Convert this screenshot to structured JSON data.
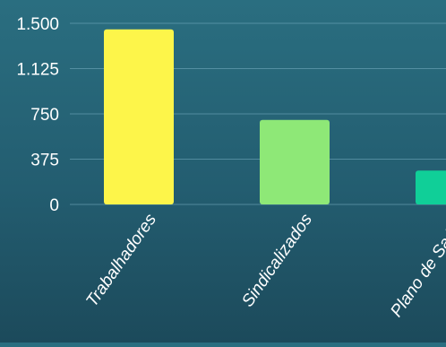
{
  "chart_data": {
    "type": "bar",
    "categories": [
      "Trabalhadores",
      "Sindicalizados",
      "Plano de Saúde"
    ],
    "values": [
      1450,
      700,
      280
    ],
    "ylim": [
      0,
      1500
    ],
    "yticks": [
      0,
      375,
      750,
      1125,
      1500
    ],
    "ytick_labels": [
      "0",
      "375",
      "750",
      "1.125",
      "1.500"
    ],
    "bar_colors": [
      "#fdf54a",
      "#8ee877",
      "#10cf98"
    ],
    "grid": true
  }
}
